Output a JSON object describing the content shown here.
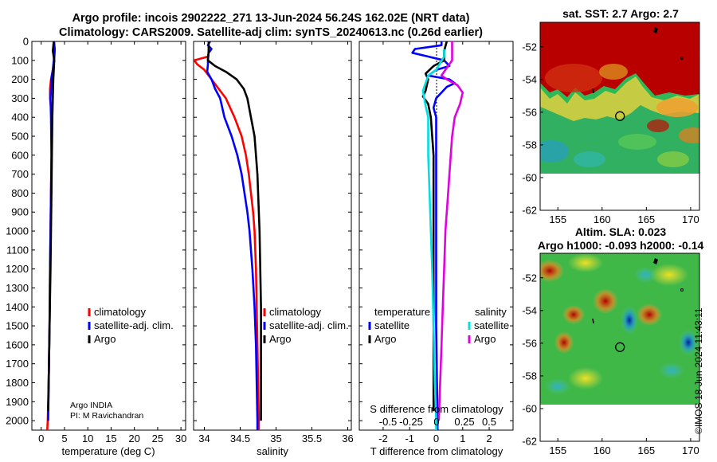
{
  "titles": {
    "line1": "Argo profile: incois 2902222_271 13-Jun-2024 56.24S 162.02E (NRT data)",
    "line2": "Climatology: CARS2009. Satellite-adj clim: synTS_20240613.nc (0.26d earlier)"
  },
  "copyright": "©IMOS 18-Jun-2024 11:43:11",
  "colors": {
    "climatology": "#ff0000",
    "satellite": "#0000ff",
    "argo": "#000000",
    "sat_salinity": "#00e0e0",
    "argo_salinity": "#e000e0",
    "zero_line": "#000000"
  },
  "chart_data": [
    {
      "type": "line",
      "id": "temperature",
      "xlabel": "temperature (deg C)",
      "xlim": [
        -2,
        31
      ],
      "xticks": [
        0,
        5,
        10,
        15,
        20,
        25,
        30
      ],
      "ylim": [
        0,
        2050
      ],
      "yticks": [
        0,
        100,
        200,
        300,
        400,
        500,
        600,
        700,
        800,
        900,
        1000,
        1100,
        1200,
        1300,
        1400,
        1500,
        1600,
        1700,
        1800,
        1900,
        2000
      ],
      "legend": [
        "climatology",
        "satellite-adj. clim.",
        "Argo"
      ],
      "note_lines": [
        "Argo INDIA",
        "PI: M Ravichandran"
      ],
      "series": [
        {
          "name": "climatology",
          "color": "#ff0000",
          "points": [
            [
              2.8,
              0
            ],
            [
              2.9,
              50
            ],
            [
              2.8,
              100
            ],
            [
              2.5,
              150
            ],
            [
              2.1,
              200
            ],
            [
              1.9,
              250
            ],
            [
              1.9,
              300
            ],
            [
              2.1,
              350
            ],
            [
              2.2,
              400
            ],
            [
              2.2,
              600
            ],
            [
              2.1,
              800
            ],
            [
              2.0,
              1000
            ],
            [
              1.9,
              1200
            ],
            [
              1.8,
              1500
            ],
            [
              1.6,
              1800
            ],
            [
              1.4,
              2000
            ],
            [
              1.3,
              2050
            ]
          ]
        },
        {
          "name": "satellite-adj. clim.",
          "color": "#0000ff",
          "points": [
            [
              2.7,
              0
            ],
            [
              2.9,
              40
            ],
            [
              2.7,
              100
            ],
            [
              2.5,
              150
            ],
            [
              2.2,
              200
            ],
            [
              2.0,
              300
            ],
            [
              2.1,
              400
            ],
            [
              2.2,
              600
            ],
            [
              2.1,
              800
            ],
            [
              2.0,
              1000
            ],
            [
              1.9,
              1200
            ],
            [
              1.8,
              1500
            ],
            [
              1.6,
              1800
            ],
            [
              1.5,
              2000
            ]
          ]
        },
        {
          "name": "Argo",
          "color": "#000000",
          "points": [
            [
              2.7,
              0
            ],
            [
              2.5,
              50
            ],
            [
              2.8,
              100
            ],
            [
              2.7,
              150
            ],
            [
              2.6,
              200
            ],
            [
              2.5,
              300
            ],
            [
              2.4,
              400
            ],
            [
              2.3,
              600
            ],
            [
              2.2,
              800
            ],
            [
              2.1,
              1000
            ],
            [
              2.0,
              1200
            ],
            [
              1.8,
              1500
            ],
            [
              1.6,
              1800
            ],
            [
              1.5,
              1950
            ]
          ]
        }
      ]
    },
    {
      "type": "line",
      "id": "salinity",
      "xlabel": "salinity",
      "xlim": [
        33.85,
        36.05
      ],
      "xticks": [
        34,
        34.5,
        35,
        35.5,
        36
      ],
      "ylim": [
        0,
        2050
      ],
      "legend": [
        "climatology",
        "satellite-adj. clim.",
        "Argo"
      ],
      "series": [
        {
          "name": "climatology",
          "color": "#ff0000",
          "points": [
            [
              34.05,
              80
            ],
            [
              33.86,
              100
            ],
            [
              33.9,
              120
            ],
            [
              34.0,
              150
            ],
            [
              34.1,
              200
            ],
            [
              34.2,
              250
            ],
            [
              34.3,
              300
            ],
            [
              34.36,
              350
            ],
            [
              34.42,
              400
            ],
            [
              34.52,
              500
            ],
            [
              34.58,
              600
            ],
            [
              34.62,
              700
            ],
            [
              34.65,
              800
            ],
            [
              34.68,
              900
            ],
            [
              34.7,
              1000
            ],
            [
              34.72,
              1200
            ],
            [
              34.73,
              1400
            ],
            [
              34.74,
              1600
            ],
            [
              34.75,
              1800
            ],
            [
              34.76,
              2000
            ],
            [
              34.76,
              2050
            ]
          ]
        },
        {
          "name": "satellite-adj. clim.",
          "color": "#0000ff",
          "points": [
            [
              34.08,
              0
            ],
            [
              34.05,
              20
            ],
            [
              34.1,
              40
            ],
            [
              34.06,
              60
            ],
            [
              34.05,
              90
            ],
            [
              34.05,
              120
            ],
            [
              34.04,
              160
            ],
            [
              34.1,
              200
            ],
            [
              34.15,
              250
            ],
            [
              34.22,
              300
            ],
            [
              34.28,
              400
            ],
            [
              34.38,
              500
            ],
            [
              34.46,
              600
            ],
            [
              34.52,
              700
            ],
            [
              34.56,
              800
            ],
            [
              34.6,
              900
            ],
            [
              34.63,
              1000
            ],
            [
              34.67,
              1200
            ],
            [
              34.7,
              1400
            ],
            [
              34.72,
              1600
            ],
            [
              34.73,
              1800
            ],
            [
              34.74,
              2000
            ],
            [
              34.74,
              2050
            ]
          ]
        },
        {
          "name": "Argo",
          "color": "#000000",
          "points": [
            [
              34.06,
              0
            ],
            [
              34.06,
              50
            ],
            [
              34.05,
              100
            ],
            [
              34.15,
              130
            ],
            [
              34.3,
              160
            ],
            [
              34.45,
              200
            ],
            [
              34.55,
              250
            ],
            [
              34.6,
              300
            ],
            [
              34.65,
              400
            ],
            [
              34.7,
              500
            ],
            [
              34.72,
              600
            ],
            [
              34.74,
              700
            ],
            [
              34.75,
              800
            ],
            [
              34.76,
              900
            ],
            [
              34.77,
              1000
            ],
            [
              34.78,
              1200
            ],
            [
              34.79,
              1400
            ],
            [
              34.79,
              1600
            ],
            [
              34.79,
              1800
            ],
            [
              34.79,
              2000
            ]
          ]
        }
      ]
    },
    {
      "type": "line",
      "id": "difference",
      "xlabel": "T difference from climatology",
      "xlabel_top": "S difference from climatology",
      "xlim": [
        -2.9,
        2.9
      ],
      "xticks": [
        -2,
        -1,
        0,
        1,
        2
      ],
      "s_ticks": [
        "-0.5",
        "-0.25",
        "0",
        "0.25",
        "0.5"
      ],
      "legend_left_title": "temperature",
      "legend_right_title": "salinity",
      "legend_left": [
        "satellite",
        "Argo"
      ],
      "legend_right": [
        "satellite",
        "Argo"
      ],
      "series": [
        {
          "name": "T satellite",
          "color": "#0000ff",
          "points": [
            [
              0.2,
              0
            ],
            [
              0.2,
              20
            ],
            [
              -0.8,
              40
            ],
            [
              -0.9,
              60
            ],
            [
              -0.3,
              80
            ],
            [
              0.3,
              100
            ],
            [
              0.5,
              130
            ],
            [
              0.0,
              150
            ],
            [
              -0.3,
              180
            ],
            [
              0.5,
              200
            ],
            [
              0.7,
              220
            ],
            [
              0.4,
              240
            ],
            [
              0.0,
              300
            ],
            [
              -0.1,
              350
            ],
            [
              0.0,
              400
            ],
            [
              0.0,
              600
            ],
            [
              0.0,
              1000
            ],
            [
              0.0,
              1500
            ],
            [
              0.05,
              2000
            ],
            [
              0.05,
              2050
            ]
          ]
        },
        {
          "name": "T Argo",
          "color": "#000000",
          "points": [
            [
              0.4,
              0
            ],
            [
              0.3,
              50
            ],
            [
              0.3,
              100
            ],
            [
              -0.1,
              130
            ],
            [
              -0.4,
              170
            ],
            [
              -0.3,
              200
            ],
            [
              -0.4,
              260
            ],
            [
              -0.5,
              290
            ],
            [
              -0.3,
              330
            ],
            [
              -0.2,
              400
            ],
            [
              -0.1,
              600
            ],
            [
              -0.1,
              1000
            ],
            [
              -0.1,
              1500
            ],
            [
              -0.1,
              1900
            ],
            [
              -0.1,
              1950
            ]
          ]
        },
        {
          "name": "S satellite",
          "color": "#00e0e0",
          "points": [
            [
              0.3,
              40
            ],
            [
              0.3,
              80
            ],
            [
              0.0,
              150
            ],
            [
              -0.3,
              180
            ],
            [
              -0.5,
              260
            ],
            [
              -0.4,
              340
            ],
            [
              -0.3,
              400
            ],
            [
              -0.3,
              600
            ],
            [
              -0.25,
              800
            ],
            [
              -0.2,
              1000
            ],
            [
              -0.15,
              1200
            ],
            [
              -0.1,
              1500
            ],
            [
              -0.05,
              1800
            ],
            [
              0.0,
              2000
            ],
            [
              0.0,
              2050
            ]
          ]
        },
        {
          "name": "S Argo",
          "color": "#e000e0",
          "points": [
            [
              0.6,
              0
            ],
            [
              0.6,
              100
            ],
            [
              0.4,
              140
            ],
            [
              0.2,
              180
            ],
            [
              0.4,
              200
            ],
            [
              0.8,
              230
            ],
            [
              1.0,
              270
            ],
            [
              0.9,
              330
            ],
            [
              0.7,
              400
            ],
            [
              0.6,
              500
            ],
            [
              0.55,
              600
            ],
            [
              0.5,
              700
            ],
            [
              0.45,
              800
            ],
            [
              0.4,
              900
            ],
            [
              0.35,
              1000
            ],
            [
              0.3,
              1200
            ],
            [
              0.25,
              1400
            ],
            [
              0.2,
              1600
            ],
            [
              0.15,
              1800
            ],
            [
              0.1,
              2000
            ]
          ]
        }
      ]
    },
    {
      "type": "heatmap",
      "id": "sst-map",
      "title": "sat. SST: 2.7 Argo: 2.7",
      "xlim": [
        153,
        171
      ],
      "ylim": [
        -62,
        -50.5
      ],
      "xticks": [
        "155",
        "160",
        "165",
        "170"
      ],
      "yticks": [
        "-52",
        "-54",
        "-56",
        "-58",
        "-60",
        "-62"
      ],
      "marker": {
        "lon": 162.02,
        "lat": -56.24
      }
    },
    {
      "type": "heatmap",
      "id": "sla-map",
      "title_line1": "Altim. SLA: 0.023",
      "title_line2": "Argo h1000: -0.093 h2000: -0.14",
      "xlim": [
        153,
        171
      ],
      "ylim": [
        -62,
        -50.5
      ],
      "xticks": [
        "155",
        "160",
        "165",
        "170"
      ],
      "yticks": [
        "-52",
        "-54",
        "-56",
        "-58",
        "-60",
        "-62"
      ],
      "marker": {
        "lon": 162.02,
        "lat": -56.24
      }
    }
  ]
}
